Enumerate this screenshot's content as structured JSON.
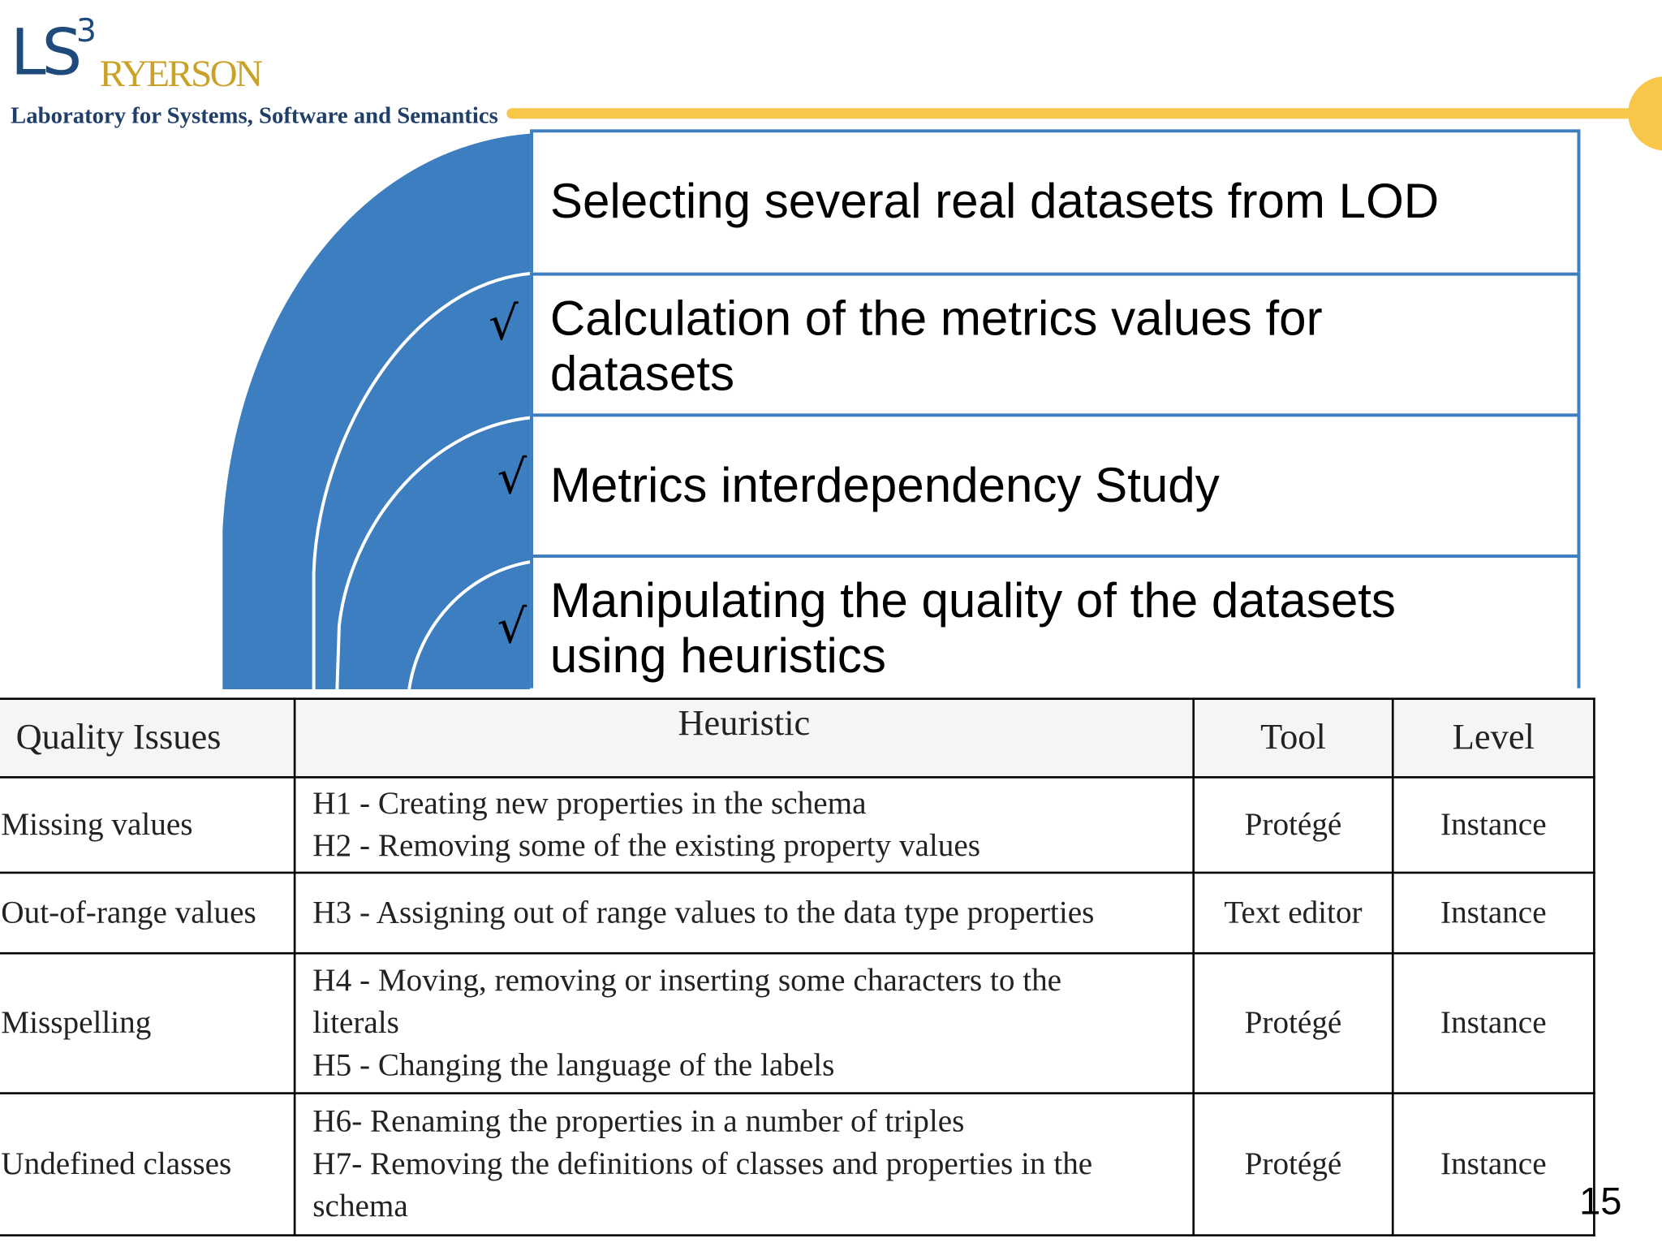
{
  "logo": {
    "mark": "LS",
    "superscript": "3",
    "name": "RYERSON",
    "tagline": "Laboratory for Systems, Software and Semantics"
  },
  "steps": [
    {
      "text": "Selecting several real datasets from LOD",
      "checked": false,
      "check_mark": ""
    },
    {
      "text": "Calculation of the metrics values for datasets",
      "checked": true,
      "check_mark": "√"
    },
    {
      "text": "Metrics interdependency Study",
      "checked": true,
      "check_mark": "√"
    },
    {
      "text": "Manipulating the quality of the datasets using  heuristics",
      "checked": true,
      "check_mark": "√"
    }
  ],
  "table": {
    "headers": [
      "Quality Issues",
      "Heuristic",
      "Tool",
      "Level"
    ],
    "rows": [
      {
        "issue": "Missing values",
        "heuristics": [
          "H1 - Creating new properties in the schema",
          "H2 - Removing some of the existing property values"
        ],
        "tool": "Protégé",
        "level": "Instance"
      },
      {
        "issue": "Out-of-range values",
        "heuristics": [
          "H3 - Assigning out of range values to the data type properties"
        ],
        "tool": "Text editor",
        "level": "Instance"
      },
      {
        "issue": "Misspelling",
        "heuristics": [
          "H4 - Moving, removing or inserting some characters to the",
          "literals",
          "H5 - Changing the language of the labels"
        ],
        "tool": "Protégé",
        "level": "Instance"
      },
      {
        "issue": "Undefined classes",
        "heuristics": [
          "H6- Renaming the properties in a number of triples",
          "H7- Removing the definitions of classes and properties in the",
          "schema"
        ],
        "tool": "Protégé",
        "level": "Instance"
      }
    ]
  },
  "page_number": "15",
  "colors": {
    "arc_blue": "#3c7ebf",
    "gold": "#f8c74a",
    "logo_blue": "#1f4a7c"
  }
}
